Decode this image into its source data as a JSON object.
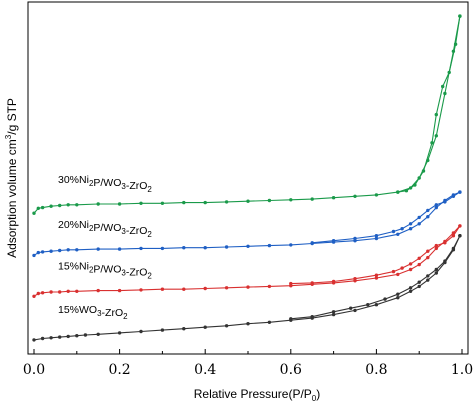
{
  "chart_data": {
    "type": "line",
    "xlabel": "Relative Pressure(P/P",
    "xlabel_sub": "0",
    "xlabel_end": ")",
    "ylabel": "Adsorption volume cm",
    "ylabel_sup": "3",
    "ylabel_end": "/g STP",
    "xlim": [
      0,
      1.0
    ],
    "xticks": [
      "0.0",
      "0.2",
      "0.4",
      "0.6",
      "0.8",
      "1.0"
    ],
    "xtick_values": [
      0.0,
      0.2,
      0.4,
      0.6,
      0.8,
      1.0
    ],
    "y_tick_labels": false,
    "grid": false,
    "series": [
      {
        "label_parts": [
          {
            "t": "30%Ni"
          },
          {
            "t": "2",
            "sub": true
          },
          {
            "t": "P/WO"
          },
          {
            "t": "3",
            "sub": true
          },
          {
            "t": "-ZrO"
          },
          {
            "t": "2",
            "sub": true
          }
        ],
        "color": "#1a9a4a",
        "adsorption": [
          [
            0.0,
            100
          ],
          [
            0.01,
            107
          ],
          [
            0.02,
            108
          ],
          [
            0.04,
            110
          ],
          [
            0.06,
            111
          ],
          [
            0.08,
            112
          ],
          [
            0.1,
            112
          ],
          [
            0.15,
            113
          ],
          [
            0.2,
            113
          ],
          [
            0.25,
            114
          ],
          [
            0.3,
            114
          ],
          [
            0.35,
            115
          ],
          [
            0.4,
            115
          ],
          [
            0.45,
            116
          ],
          [
            0.5,
            117
          ],
          [
            0.55,
            118
          ],
          [
            0.6,
            119
          ],
          [
            0.65,
            120
          ],
          [
            0.7,
            122
          ],
          [
            0.75,
            124
          ],
          [
            0.8,
            126
          ],
          [
            0.85,
            130
          ],
          [
            0.88,
            136
          ],
          [
            0.9,
            150
          ],
          [
            0.92,
            175
          ],
          [
            0.94,
            210
          ],
          [
            0.96,
            270
          ],
          [
            0.98,
            330
          ],
          [
            0.995,
            380
          ]
        ],
        "desorption": [
          [
            0.995,
            380
          ],
          [
            0.985,
            340
          ],
          [
            0.97,
            300
          ],
          [
            0.955,
            280
          ],
          [
            0.94,
            240
          ],
          [
            0.93,
            200
          ],
          [
            0.91,
            160
          ],
          [
            0.89,
            140
          ],
          [
            0.87,
            132
          ],
          [
            0.85,
            130
          ]
        ]
      },
      {
        "label_parts": [
          {
            "t": "20%Ni"
          },
          {
            "t": "2",
            "sub": true
          },
          {
            "t": "P/WO"
          },
          {
            "t": "3",
            "sub": true
          },
          {
            "t": "-ZrO"
          },
          {
            "t": "2",
            "sub": true
          }
        ],
        "color": "#1f5fc4",
        "adsorption": [
          [
            0.0,
            40
          ],
          [
            0.01,
            44
          ],
          [
            0.02,
            45
          ],
          [
            0.04,
            46
          ],
          [
            0.06,
            47
          ],
          [
            0.08,
            48
          ],
          [
            0.1,
            48
          ],
          [
            0.15,
            49
          ],
          [
            0.2,
            49
          ],
          [
            0.25,
            50
          ],
          [
            0.3,
            50
          ],
          [
            0.35,
            51
          ],
          [
            0.4,
            51
          ],
          [
            0.45,
            52
          ],
          [
            0.5,
            53
          ],
          [
            0.55,
            54
          ],
          [
            0.6,
            55
          ],
          [
            0.65,
            57
          ],
          [
            0.7,
            59
          ],
          [
            0.75,
            61
          ],
          [
            0.8,
            64
          ],
          [
            0.85,
            70
          ],
          [
            0.88,
            78
          ],
          [
            0.9,
            85
          ],
          [
            0.92,
            95
          ],
          [
            0.94,
            108
          ],
          [
            0.96,
            118
          ],
          [
            0.98,
            126
          ],
          [
            0.995,
            130
          ]
        ],
        "desorption": [
          [
            0.995,
            130
          ],
          [
            0.98,
            124
          ],
          [
            0.96,
            116
          ],
          [
            0.94,
            112
          ],
          [
            0.92,
            104
          ],
          [
            0.9,
            94
          ],
          [
            0.88,
            85
          ],
          [
            0.86,
            78
          ],
          [
            0.84,
            74
          ],
          [
            0.8,
            68
          ],
          [
            0.75,
            64
          ],
          [
            0.7,
            61
          ],
          [
            0.65,
            58
          ]
        ]
      },
      {
        "label_parts": [
          {
            "t": "15%Ni"
          },
          {
            "t": "2",
            "sub": true
          },
          {
            "t": "P/WO"
          },
          {
            "t": "3",
            "sub": true
          },
          {
            "t": "-ZrO"
          },
          {
            "t": "2",
            "sub": true
          }
        ],
        "color": "#d93030",
        "adsorption": [
          [
            0.0,
            -18
          ],
          [
            0.01,
            -14
          ],
          [
            0.02,
            -13
          ],
          [
            0.04,
            -12
          ],
          [
            0.06,
            -12
          ],
          [
            0.08,
            -11
          ],
          [
            0.1,
            -11
          ],
          [
            0.15,
            -10
          ],
          [
            0.2,
            -10
          ],
          [
            0.25,
            -9
          ],
          [
            0.3,
            -8
          ],
          [
            0.35,
            -8
          ],
          [
            0.4,
            -7
          ],
          [
            0.45,
            -6
          ],
          [
            0.5,
            -5
          ],
          [
            0.55,
            -4
          ],
          [
            0.6,
            -3
          ],
          [
            0.65,
            -1
          ],
          [
            0.7,
            1
          ],
          [
            0.75,
            4
          ],
          [
            0.8,
            8
          ],
          [
            0.85,
            13
          ],
          [
            0.88,
            20
          ],
          [
            0.9,
            27
          ],
          [
            0.92,
            37
          ],
          [
            0.94,
            50
          ],
          [
            0.96,
            60
          ],
          [
            0.98,
            72
          ],
          [
            0.995,
            82
          ]
        ],
        "desorption": [
          [
            0.995,
            82
          ],
          [
            0.98,
            68
          ],
          [
            0.96,
            58
          ],
          [
            0.94,
            54
          ],
          [
            0.92,
            46
          ],
          [
            0.9,
            36
          ],
          [
            0.88,
            28
          ],
          [
            0.86,
            22
          ],
          [
            0.84,
            17
          ],
          [
            0.8,
            12
          ],
          [
            0.75,
            7
          ],
          [
            0.7,
            3
          ],
          [
            0.65,
            1
          ],
          [
            0.6,
            0
          ]
        ]
      },
      {
        "label_parts": [
          {
            "t": "15%WO"
          },
          {
            "t": "3",
            "sub": true
          },
          {
            "t": "-ZrO"
          },
          {
            "t": "2",
            "sub": true
          }
        ],
        "color": "#333333",
        "adsorption": [
          [
            0.0,
            -80
          ],
          [
            0.02,
            -78
          ],
          [
            0.04,
            -77
          ],
          [
            0.06,
            -76
          ],
          [
            0.08,
            -75
          ],
          [
            0.1,
            -74
          ],
          [
            0.12,
            -73
          ],
          [
            0.15,
            -72
          ],
          [
            0.2,
            -70
          ],
          [
            0.25,
            -68
          ],
          [
            0.3,
            -66
          ],
          [
            0.35,
            -64
          ],
          [
            0.4,
            -62
          ],
          [
            0.45,
            -60
          ],
          [
            0.5,
            -57
          ],
          [
            0.55,
            -55
          ],
          [
            0.6,
            -52
          ],
          [
            0.65,
            -49
          ],
          [
            0.7,
            -44
          ],
          [
            0.75,
            -38
          ],
          [
            0.8,
            -30
          ],
          [
            0.85,
            -20
          ],
          [
            0.88,
            -11
          ],
          [
            0.9,
            -4
          ],
          [
            0.92,
            5
          ],
          [
            0.94,
            15
          ],
          [
            0.96,
            30
          ],
          [
            0.98,
            48
          ],
          [
            0.995,
            68
          ]
        ],
        "desorption": [
          [
            0.995,
            68
          ],
          [
            0.98,
            50
          ],
          [
            0.96,
            32
          ],
          [
            0.94,
            20
          ],
          [
            0.92,
            11
          ],
          [
            0.9,
            2
          ],
          [
            0.88,
            -6
          ],
          [
            0.85,
            -15
          ],
          [
            0.82,
            -22
          ],
          [
            0.78,
            -30
          ],
          [
            0.74,
            -35
          ],
          [
            0.7,
            -40
          ],
          [
            0.65,
            -47
          ],
          [
            0.6,
            -50
          ]
        ]
      }
    ]
  }
}
